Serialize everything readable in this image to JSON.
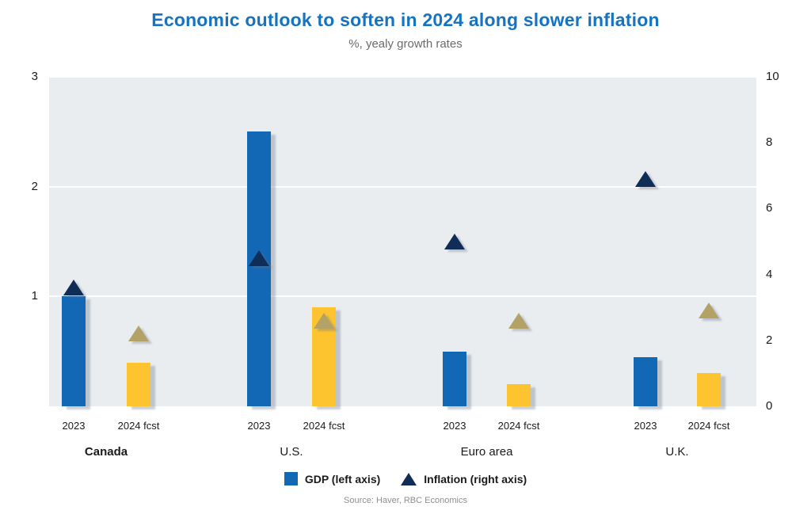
{
  "title": "Economic outlook to soften in 2024 along slower inflation",
  "subtitle": "%, yealy growth rates",
  "source": "Source: Haver, RBC Economics",
  "legend": {
    "gdp_label": "GDP (left axis)",
    "inflation_label": "Inflation (right axis)"
  },
  "colors": {
    "title": "#1573c2",
    "subtitle": "#6b6b6b",
    "plot_bg": "#e9edf0",
    "gridline": "#ffffff",
    "bar_2023": "#1268b5",
    "bar_2024": "#fdc42f",
    "marker_2023": "#0f2d56",
    "marker_2024": "#b3a266",
    "axis_text": "#1a1a1a",
    "source_text": "#8f8f8f"
  },
  "chart_data": {
    "type": "bar",
    "title": "Economic outlook to soften in 2024 along slower inflation",
    "subtitle": "%, yealy growth rates",
    "grid": "horizontal white gridlines at left-axis values 1, 2, 3",
    "legend_position": "bottom center",
    "left_axis": {
      "series": "GDP (left axis)",
      "ticks": [
        3,
        2,
        1
      ],
      "range": [
        0,
        3
      ]
    },
    "right_axis": {
      "series": "Inflation (right axis)",
      "ticks": [
        10,
        8,
        6,
        4,
        2,
        0
      ],
      "range": [
        0,
        10
      ]
    },
    "groups": [
      {
        "country": "Canada",
        "emphasis": true,
        "points": [
          {
            "label": "2023",
            "gdp_left_axis": 1.0,
            "inflation_right_axis": 3.6
          },
          {
            "label": "2024 fcst",
            "gdp_left_axis": 0.4,
            "inflation_right_axis": 2.2
          }
        ]
      },
      {
        "country": "U.S.",
        "emphasis": false,
        "points": [
          {
            "label": "2023",
            "gdp_left_axis": 2.5,
            "inflation_right_axis": 4.5
          },
          {
            "label": "2024 fcst",
            "gdp_left_axis": 0.9,
            "inflation_right_axis": 2.6
          }
        ]
      },
      {
        "country": "Euro area",
        "emphasis": false,
        "points": [
          {
            "label": "2023",
            "gdp_left_axis": 0.5,
            "inflation_right_axis": 5.0
          },
          {
            "label": "2024 fcst",
            "gdp_left_axis": 0.2,
            "inflation_right_axis": 2.6
          }
        ]
      },
      {
        "country": "U.K.",
        "emphasis": false,
        "points": [
          {
            "label": "2023",
            "gdp_left_axis": 0.45,
            "inflation_right_axis": 6.9
          },
          {
            "label": "2024 fcst",
            "gdp_left_axis": 0.3,
            "inflation_right_axis": 2.9
          }
        ]
      }
    ]
  }
}
